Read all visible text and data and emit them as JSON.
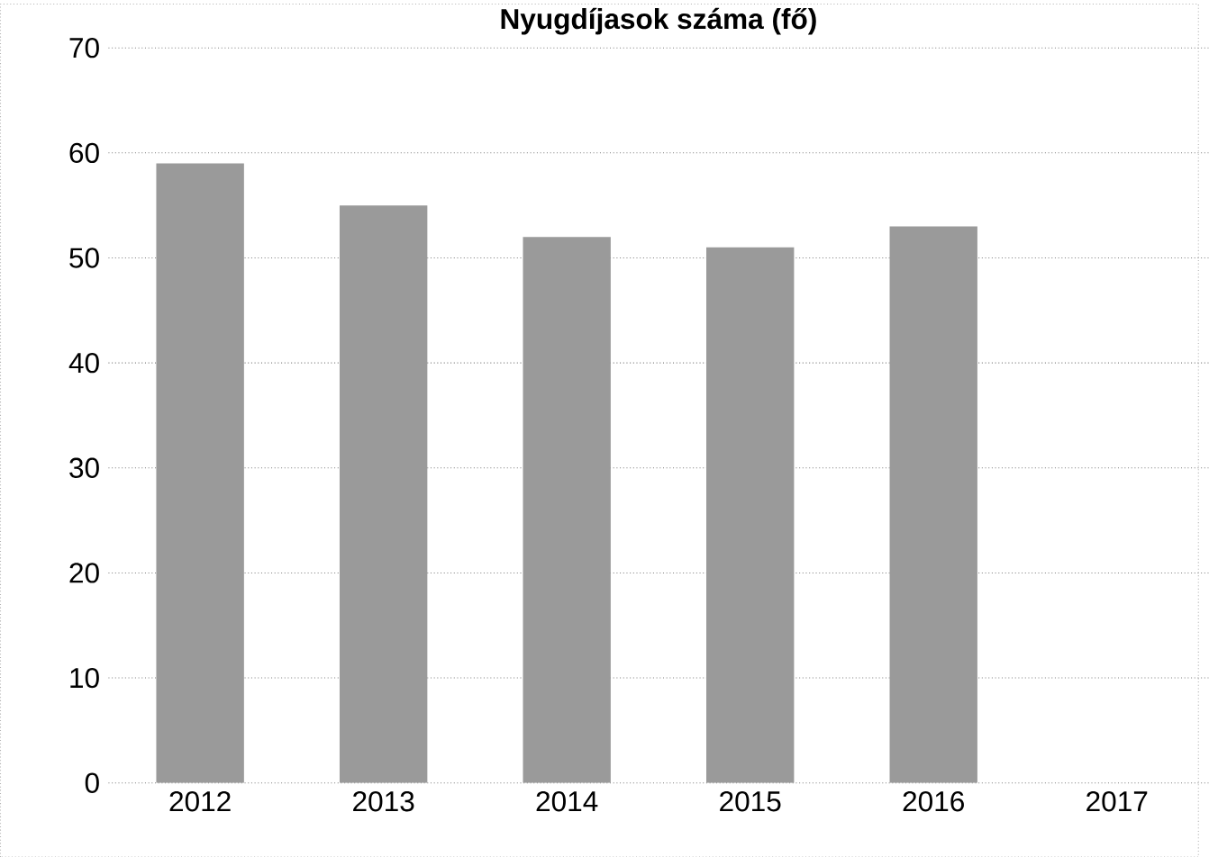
{
  "chart_data": {
    "type": "bar",
    "title": "Nyugdíjasok száma (fő)",
    "categories": [
      "2012",
      "2013",
      "2014",
      "2015",
      "2016",
      "2017"
    ],
    "values": [
      59,
      55,
      52,
      51,
      53,
      null
    ],
    "color": "#9a9a9a",
    "ylim": [
      0,
      70
    ],
    "yticks": [
      0,
      10,
      20,
      30,
      40,
      50,
      60,
      70
    ],
    "grid": "y"
  }
}
